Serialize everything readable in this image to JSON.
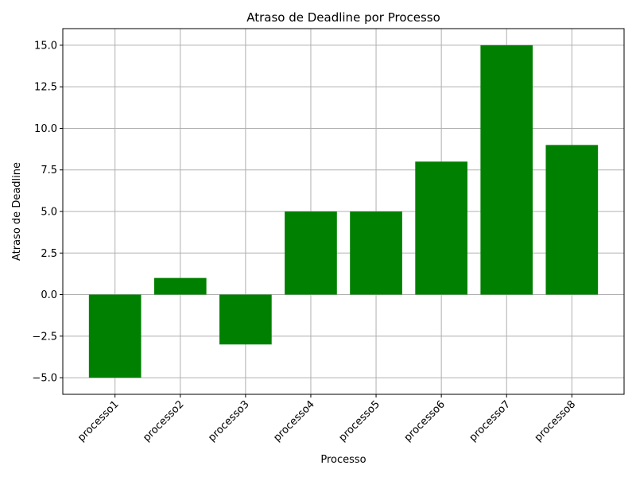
{
  "chart_data": {
    "type": "bar",
    "title": "Atraso de Deadline por Processo",
    "xlabel": "Processo",
    "ylabel": "Atraso de Deadline",
    "categories": [
      "processo1",
      "processo2",
      "processo3",
      "processo4",
      "processo5",
      "processo6",
      "processo7",
      "processo8"
    ],
    "values": [
      -5,
      1,
      -3,
      5,
      5,
      8,
      15,
      9
    ],
    "ylim": [
      -6,
      16
    ],
    "yticks": [
      -5.0,
      -2.5,
      0.0,
      2.5,
      5.0,
      7.5,
      10.0,
      12.5,
      15.0
    ],
    "ytick_labels": [
      "−5.0",
      "−2.5",
      "0.0",
      "2.5",
      "5.0",
      "7.5",
      "10.0",
      "12.5",
      "15.0"
    ],
    "grid": true,
    "bar_color": "#008000",
    "grid_color": "#b0b0b0"
  }
}
